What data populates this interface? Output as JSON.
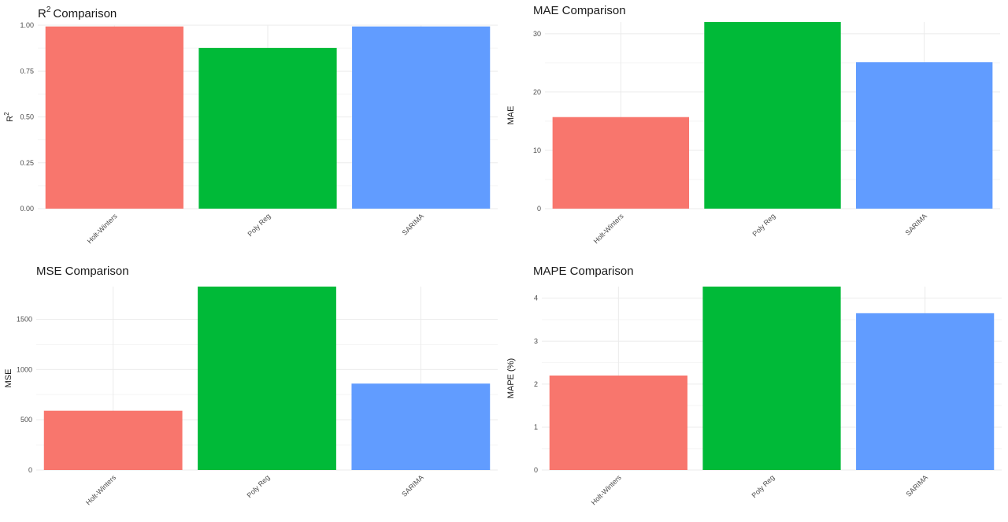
{
  "charts_meta": {
    "colors": [
      "#F8766D",
      "#00BA38",
      "#619CFF"
    ]
  },
  "chart_data": [
    {
      "type": "bar",
      "title": "R² Comparison",
      "title_main": "R",
      "title_sup": "2",
      "title_rest": " Comparison",
      "xlabel": "",
      "ylabel": "R²",
      "ylabel_main": "R",
      "ylabel_sup": "2",
      "categories": [
        "Holt-Winters",
        "Poly Reg",
        "SARIMA"
      ],
      "values": [
        0.993,
        0.876,
        0.993
      ],
      "ylim": [
        0,
        1.0
      ],
      "yticks": [
        0,
        0.25,
        0.5,
        0.75,
        1.0
      ],
      "ytick_labels": [
        "0.00",
        "0.25",
        "0.50",
        "0.75",
        "1.00"
      ],
      "grid": true
    },
    {
      "type": "bar",
      "title": "MAE Comparison",
      "xlabel": "",
      "ylabel": "MAE",
      "categories": [
        "Holt-Winters",
        "Poly Reg",
        "SARIMA"
      ],
      "values": [
        15.7,
        32.0,
        25.1
      ],
      "ylim": [
        0,
        32.0
      ],
      "yticks": [
        0,
        10,
        20,
        30
      ],
      "ytick_labels": [
        "0",
        "10",
        "20",
        "30"
      ],
      "grid": true
    },
    {
      "type": "bar",
      "title": "MSE Comparison",
      "xlabel": "",
      "ylabel": "MSE",
      "categories": [
        "Holt-Winters",
        "Poly Reg",
        "SARIMA"
      ],
      "values": [
        590,
        1825,
        860
      ],
      "ylim": [
        0,
        1825
      ],
      "yticks": [
        0,
        500,
        1000,
        1500
      ],
      "ytick_labels": [
        "0",
        "500",
        "1000",
        "1500"
      ],
      "grid": true
    },
    {
      "type": "bar",
      "title": "MAPE Comparison",
      "xlabel": "",
      "ylabel": "MAPE (%)",
      "categories": [
        "Holt-Winters",
        "Poly Reg",
        "SARIMA"
      ],
      "values": [
        2.2,
        4.27,
        3.65
      ],
      "ylim": [
        0,
        4.27
      ],
      "yticks": [
        0,
        1,
        2,
        3,
        4
      ],
      "ytick_labels": [
        "0",
        "1",
        "2",
        "3",
        "4"
      ],
      "grid": true
    }
  ]
}
